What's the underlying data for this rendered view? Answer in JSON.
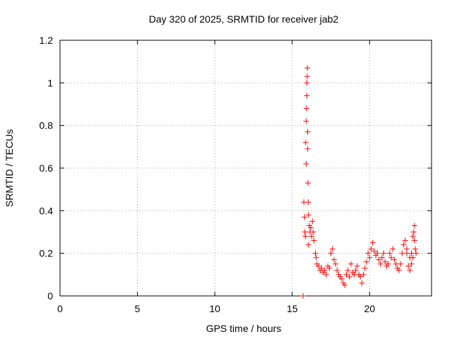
{
  "chart_data": {
    "type": "scatter",
    "title": "Day 320 of 2025, SRMTID for receiver jab2",
    "xlabel": "GPS time / hours",
    "ylabel": "SRMTID / TECUs",
    "xlim": [
      0,
      24
    ],
    "ylim": [
      0,
      1.2
    ],
    "x_ticks": [
      0,
      5,
      10,
      15,
      20
    ],
    "x_tick_labels": [
      "0",
      "5",
      "10",
      "15",
      "20"
    ],
    "y_ticks": [
      0,
      0.2,
      0.4,
      0.6,
      0.8,
      1.0,
      1.2
    ],
    "y_tick_labels": [
      "0",
      "0.2",
      "0.4",
      "0.6",
      "0.8",
      "1",
      "1.2"
    ],
    "grid": true,
    "marker": "+",
    "color": "#ff0000",
    "series": [
      {
        "name": "jab2",
        "points": [
          [
            15.7,
            0.0
          ],
          [
            15.75,
            0.44
          ],
          [
            15.8,
            0.37
          ],
          [
            15.82,
            0.3
          ],
          [
            15.85,
            0.28
          ],
          [
            15.87,
            0.72
          ],
          [
            15.9,
            0.62
          ],
          [
            15.9,
            0.82
          ],
          [
            15.92,
            0.88
          ],
          [
            15.95,
            0.94
          ],
          [
            15.95,
            1.0
          ],
          [
            15.97,
            1.03
          ],
          [
            15.98,
            1.07
          ],
          [
            16.0,
            0.77
          ],
          [
            16.0,
            0.69
          ],
          [
            16.02,
            0.53
          ],
          [
            16.03,
            0.44
          ],
          [
            16.05,
            0.38
          ],
          [
            16.05,
            0.24
          ],
          [
            16.1,
            0.33
          ],
          [
            16.15,
            0.3
          ],
          [
            16.2,
            0.32
          ],
          [
            16.25,
            0.28
          ],
          [
            16.3,
            0.35
          ],
          [
            16.35,
            0.3
          ],
          [
            16.4,
            0.26
          ],
          [
            16.5,
            0.2
          ],
          [
            16.55,
            0.18
          ],
          [
            16.6,
            0.15
          ],
          [
            16.7,
            0.14
          ],
          [
            16.8,
            0.12
          ],
          [
            16.9,
            0.13
          ],
          [
            17.0,
            0.11
          ],
          [
            17.1,
            0.12
          ],
          [
            17.2,
            0.1
          ],
          [
            17.3,
            0.14
          ],
          [
            17.4,
            0.13
          ],
          [
            17.5,
            0.2
          ],
          [
            17.6,
            0.22
          ],
          [
            17.7,
            0.17
          ],
          [
            17.8,
            0.15
          ],
          [
            17.9,
            0.12
          ],
          [
            18.0,
            0.1
          ],
          [
            18.1,
            0.09
          ],
          [
            18.2,
            0.08
          ],
          [
            18.3,
            0.06
          ],
          [
            18.4,
            0.05
          ],
          [
            18.5,
            0.1
          ],
          [
            18.6,
            0.12
          ],
          [
            18.7,
            0.09
          ],
          [
            18.8,
            0.15
          ],
          [
            18.9,
            0.11
          ],
          [
            19.0,
            0.1
          ],
          [
            19.1,
            0.12
          ],
          [
            19.2,
            0.14
          ],
          [
            19.3,
            0.1
          ],
          [
            19.4,
            0.09
          ],
          [
            19.5,
            0.06
          ],
          [
            19.6,
            0.1
          ],
          [
            19.7,
            0.13
          ],
          [
            19.8,
            0.16
          ],
          [
            19.9,
            0.2
          ],
          [
            20.0,
            0.18
          ],
          [
            20.1,
            0.22
          ],
          [
            20.2,
            0.25
          ],
          [
            20.3,
            0.21
          ],
          [
            20.4,
            0.19
          ],
          [
            20.5,
            0.2
          ],
          [
            20.6,
            0.17
          ],
          [
            20.7,
            0.15
          ],
          [
            20.8,
            0.18
          ],
          [
            20.9,
            0.2
          ],
          [
            21.0,
            0.16
          ],
          [
            21.1,
            0.14
          ],
          [
            21.2,
            0.15
          ],
          [
            21.3,
            0.2
          ],
          [
            21.4,
            0.18
          ],
          [
            21.5,
            0.22
          ],
          [
            21.6,
            0.17
          ],
          [
            21.7,
            0.15
          ],
          [
            21.8,
            0.13
          ],
          [
            21.9,
            0.12
          ],
          [
            22.0,
            0.15
          ],
          [
            22.1,
            0.2
          ],
          [
            22.2,
            0.24
          ],
          [
            22.3,
            0.26
          ],
          [
            22.4,
            0.22
          ],
          [
            22.5,
            0.14
          ],
          [
            22.6,
            0.12
          ],
          [
            22.7,
            0.15
          ],
          [
            22.8,
            0.18
          ],
          [
            22.85,
            0.3
          ],
          [
            22.9,
            0.33
          ],
          [
            22.95,
            0.22
          ],
          [
            23.0,
            0.2
          ],
          [
            22.9,
            0.26
          ],
          [
            22.8,
            0.28
          ],
          [
            22.7,
            0.2
          ],
          [
            22.6,
            0.18
          ],
          [
            22.4,
            0.2
          ]
        ]
      }
    ]
  }
}
